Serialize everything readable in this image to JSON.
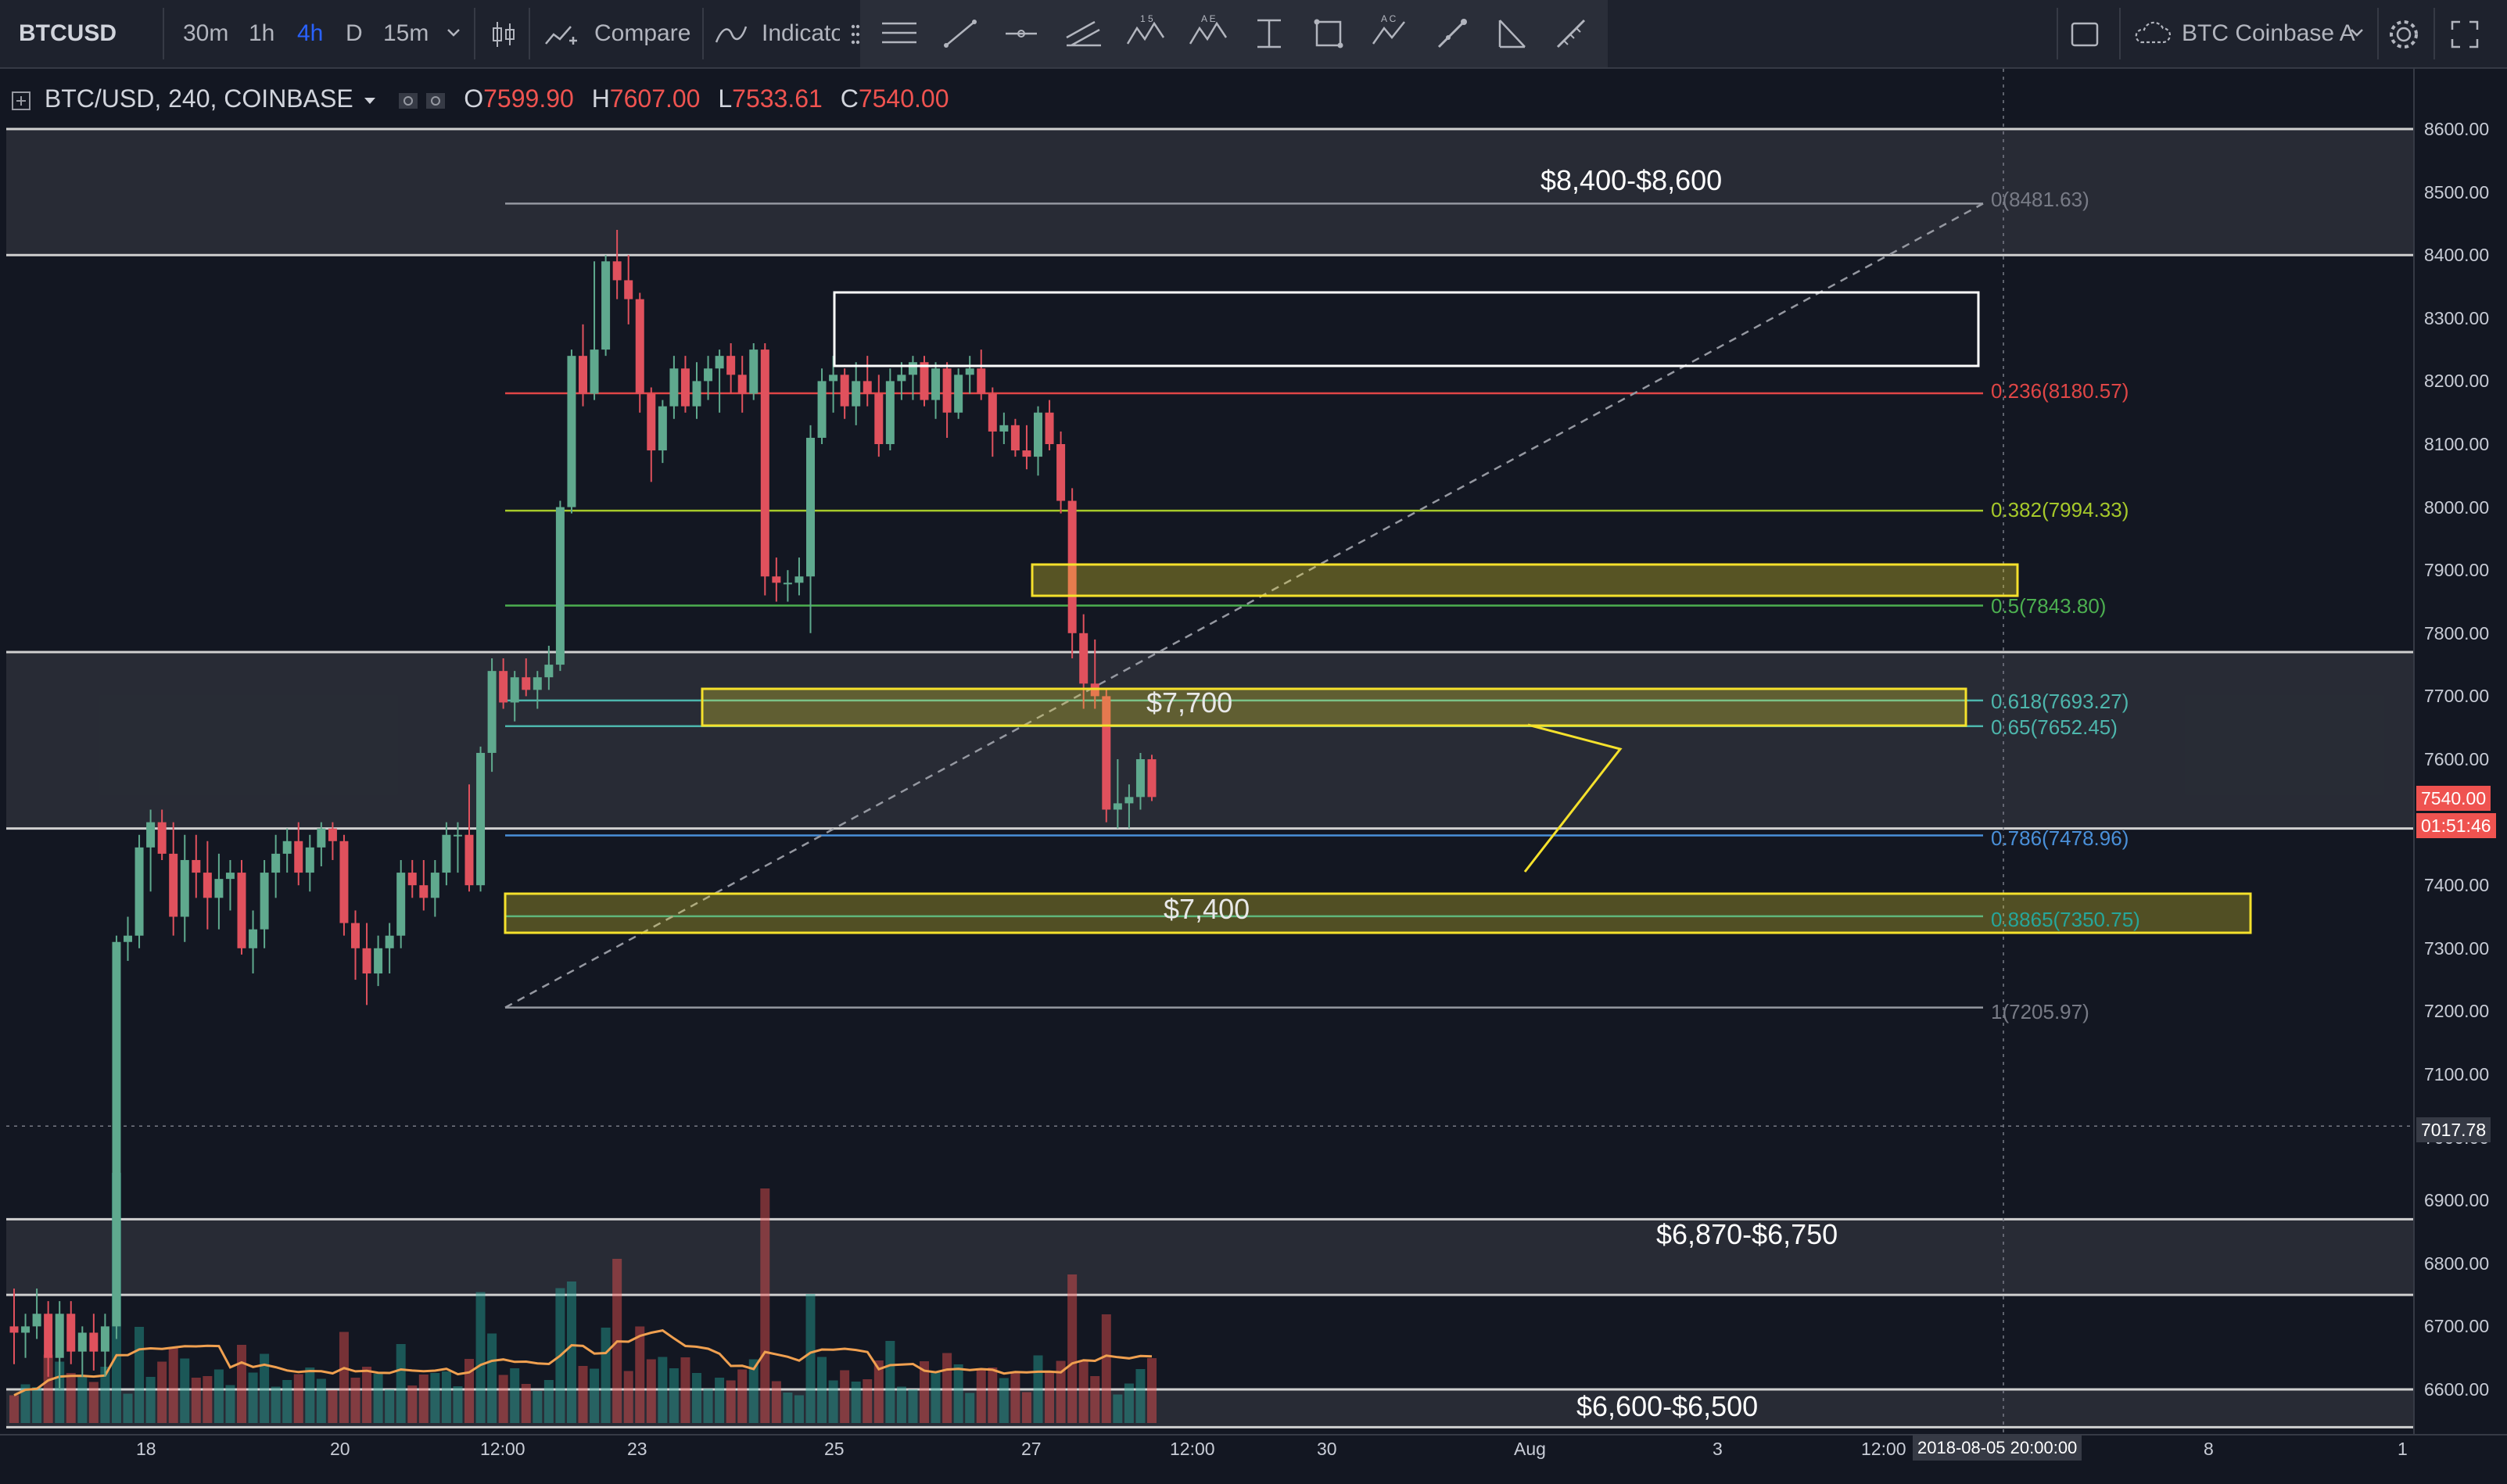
{
  "toolbar": {
    "symbol": "BTCUSD",
    "intervals": [
      "30m",
      "1h",
      "4h",
      "D",
      "15m"
    ],
    "active_interval": "4h",
    "compare_label": "Compare",
    "indicators_label": "Indicato",
    "chart_source": "BTC Coinbase A"
  },
  "legend": {
    "title": "BTC/USD, 240, COINBASE",
    "open_key": "O",
    "open": "7599.90",
    "high_key": "H",
    "high": "7607.00",
    "low_key": "L",
    "low": "7533.61",
    "close_key": "C",
    "close": "7540.00"
  },
  "zones": {
    "z8400": "$8,400-$8,600",
    "z7700": "$7,700",
    "z7400": "$7,400",
    "z6870": "$6,870-$6,750",
    "z6600": "$6,600-$6,500"
  },
  "fib_labels": [
    {
      "text": "0(8481.63)",
      "value": 8481.63,
      "color": "#9598a1"
    },
    {
      "text": "0.236(8180.57)",
      "value": 8180.57,
      "color": "#e04646"
    },
    {
      "text": "0.382(7994.33)",
      "value": 7994.33,
      "color": "#a6c92a"
    },
    {
      "text": "0.5(7843.80)",
      "value": 7843.8,
      "color": "#4caf50"
    },
    {
      "text": "0.618(7693.27)",
      "value": 7693.27,
      "color": "#4db6ac"
    },
    {
      "text": "0.65(7652.45)",
      "value": 7652.45,
      "color": "#4db6ac"
    },
    {
      "text": "0.786(7478.96)",
      "value": 7478.96,
      "color": "#4a90d9"
    },
    {
      "text": "0.8865(7350.75)",
      "value": 7350.75,
      "color": "#26a69a"
    },
    {
      "text": "1(7205.97)",
      "value": 7205.97,
      "color": "#9598a1"
    }
  ],
  "price_axis": {
    "ticks": [
      "8600.00",
      "8500.00",
      "8400.00",
      "8300.00",
      "8200.00",
      "8100.00",
      "8000.00",
      "7900.00",
      "7800.00",
      "7700.00",
      "7600.00",
      "7500.00",
      "7400.00",
      "7300.00",
      "7200.00",
      "7100.00",
      "7000.00",
      "6900.00",
      "6800.00",
      "6700.00",
      "6600.00"
    ],
    "last_price": "7540.00",
    "countdown": "01:51:46",
    "crosshair_price": "7017.78"
  },
  "time_axis": {
    "ticks": [
      "18",
      "20",
      "12:00",
      "23",
      "25",
      "27",
      "12:00",
      "30",
      "Aug",
      "3",
      "12:00",
      "8",
      "1"
    ],
    "crosshair_time": "2018-08-05 20:00:00"
  },
  "chart_data": {
    "type": "candlestick",
    "symbol": "BTC/USD",
    "interval": "240",
    "exchange": "COINBASE",
    "y_range": [
      6570,
      8660
    ],
    "last_candle": {
      "open": 7599.9,
      "high": 7607.0,
      "low": 7533.61,
      "close": 7540.0
    },
    "candles_ohlc": [
      [
        6700,
        6760,
        6640,
        6690
      ],
      [
        6690,
        6720,
        6650,
        6700
      ],
      [
        6700,
        6760,
        6680,
        6720
      ],
      [
        6720,
        6740,
        6620,
        6650
      ],
      [
        6650,
        6740,
        6600,
        6720
      ],
      [
        6720,
        6740,
        6640,
        6660
      ],
      [
        6660,
        6700,
        6620,
        6690
      ],
      [
        6690,
        6720,
        6630,
        6660
      ],
      [
        6660,
        6720,
        6620,
        6700
      ],
      [
        6700,
        7320,
        6680,
        7310
      ],
      [
        7310,
        7350,
        7280,
        7320
      ],
      [
        7320,
        7480,
        7300,
        7460
      ],
      [
        7460,
        7520,
        7390,
        7500
      ],
      [
        7500,
        7520,
        7440,
        7450
      ],
      [
        7450,
        7500,
        7320,
        7350
      ],
      [
        7350,
        7480,
        7310,
        7440
      ],
      [
        7440,
        7480,
        7380,
        7420
      ],
      [
        7420,
        7470,
        7330,
        7380
      ],
      [
        7380,
        7450,
        7330,
        7410
      ],
      [
        7410,
        7440,
        7360,
        7420
      ],
      [
        7420,
        7440,
        7290,
        7300
      ],
      [
        7300,
        7360,
        7260,
        7330
      ],
      [
        7330,
        7440,
        7300,
        7420
      ],
      [
        7420,
        7480,
        7380,
        7450
      ],
      [
        7450,
        7490,
        7420,
        7470
      ],
      [
        7470,
        7500,
        7400,
        7420
      ],
      [
        7420,
        7480,
        7390,
        7460
      ],
      [
        7460,
        7500,
        7430,
        7490
      ],
      [
        7490,
        7500,
        7440,
        7470
      ],
      [
        7470,
        7480,
        7320,
        7340
      ],
      [
        7340,
        7360,
        7250,
        7300
      ],
      [
        7300,
        7340,
        7210,
        7260
      ],
      [
        7260,
        7320,
        7240,
        7300
      ],
      [
        7300,
        7340,
        7260,
        7320
      ],
      [
        7320,
        7440,
        7300,
        7420
      ],
      [
        7420,
        7440,
        7380,
        7400
      ],
      [
        7400,
        7440,
        7360,
        7380
      ],
      [
        7380,
        7440,
        7350,
        7420
      ],
      [
        7420,
        7500,
        7400,
        7480
      ],
      [
        7480,
        7500,
        7420,
        7480
      ],
      [
        7480,
        7560,
        7390,
        7400
      ],
      [
        7400,
        7620,
        7390,
        7610
      ],
      [
        7610,
        7760,
        7580,
        7740
      ],
      [
        7740,
        7760,
        7680,
        7690
      ],
      [
        7690,
        7740,
        7660,
        7730
      ],
      [
        7730,
        7760,
        7700,
        7710
      ],
      [
        7710,
        7740,
        7680,
        7730
      ],
      [
        7730,
        7780,
        7710,
        7750
      ],
      [
        7750,
        8010,
        7740,
        8000
      ],
      [
        8000,
        8250,
        7990,
        8240
      ],
      [
        8240,
        8290,
        8160,
        8180
      ],
      [
        8180,
        8390,
        8170,
        8250
      ],
      [
        8250,
        8400,
        8240,
        8390
      ],
      [
        8390,
        8440,
        8330,
        8360
      ],
      [
        8360,
        8400,
        8290,
        8330
      ],
      [
        8330,
        8340,
        8150,
        8180
      ],
      [
        8180,
        8190,
        8040,
        8090
      ],
      [
        8090,
        8170,
        8070,
        8160
      ],
      [
        8160,
        8240,
        8140,
        8220
      ],
      [
        8220,
        8240,
        8150,
        8160
      ],
      [
        8160,
        8230,
        8140,
        8200
      ],
      [
        8200,
        8240,
        8170,
        8220
      ],
      [
        8220,
        8250,
        8150,
        8240
      ],
      [
        8240,
        8260,
        8180,
        8210
      ],
      [
        8210,
        8240,
        8150,
        8180
      ],
      [
        8180,
        8260,
        8170,
        8250
      ],
      [
        8250,
        8260,
        7860,
        7890
      ],
      [
        7890,
        7920,
        7850,
        7880
      ],
      [
        7880,
        7900,
        7850,
        7880
      ],
      [
        7880,
        7920,
        7860,
        7890
      ],
      [
        7890,
        8130,
        7800,
        8110
      ],
      [
        8110,
        8220,
        8100,
        8200
      ],
      [
        8200,
        8240,
        8150,
        8210
      ],
      [
        8210,
        8220,
        8140,
        8160
      ],
      [
        8160,
        8230,
        8130,
        8200
      ],
      [
        8200,
        8240,
        8160,
        8180
      ],
      [
        8180,
        8210,
        8080,
        8100
      ],
      [
        8100,
        8220,
        8090,
        8200
      ],
      [
        8200,
        8230,
        8170,
        8210
      ],
      [
        8210,
        8240,
        8170,
        8230
      ],
      [
        8230,
        8240,
        8160,
        8170
      ],
      [
        8170,
        8230,
        8140,
        8220
      ],
      [
        8220,
        8230,
        8110,
        8150
      ],
      [
        8150,
        8220,
        8140,
        8210
      ],
      [
        8210,
        8240,
        8180,
        8220
      ],
      [
        8220,
        8250,
        8170,
        8180
      ],
      [
        8180,
        8190,
        8080,
        8120
      ],
      [
        8120,
        8150,
        8100,
        8130
      ],
      [
        8130,
        8140,
        8080,
        8090
      ],
      [
        8090,
        8130,
        8060,
        8080
      ],
      [
        8080,
        8160,
        8050,
        8150
      ],
      [
        8150,
        8170,
        8090,
        8100
      ],
      [
        8100,
        8120,
        7990,
        8010
      ],
      [
        8010,
        8030,
        7760,
        7800
      ],
      [
        7800,
        7830,
        7680,
        7720
      ],
      [
        7720,
        7790,
        7680,
        7700
      ],
      [
        7700,
        7710,
        7500,
        7520
      ],
      [
        7520,
        7600,
        7490,
        7530
      ],
      [
        7530,
        7560,
        7490,
        7540
      ],
      [
        7540,
        7610,
        7520,
        7600
      ],
      [
        7599.9,
        7607.0,
        7533.61,
        7540.0
      ]
    ],
    "volume_ma_visible": true
  }
}
